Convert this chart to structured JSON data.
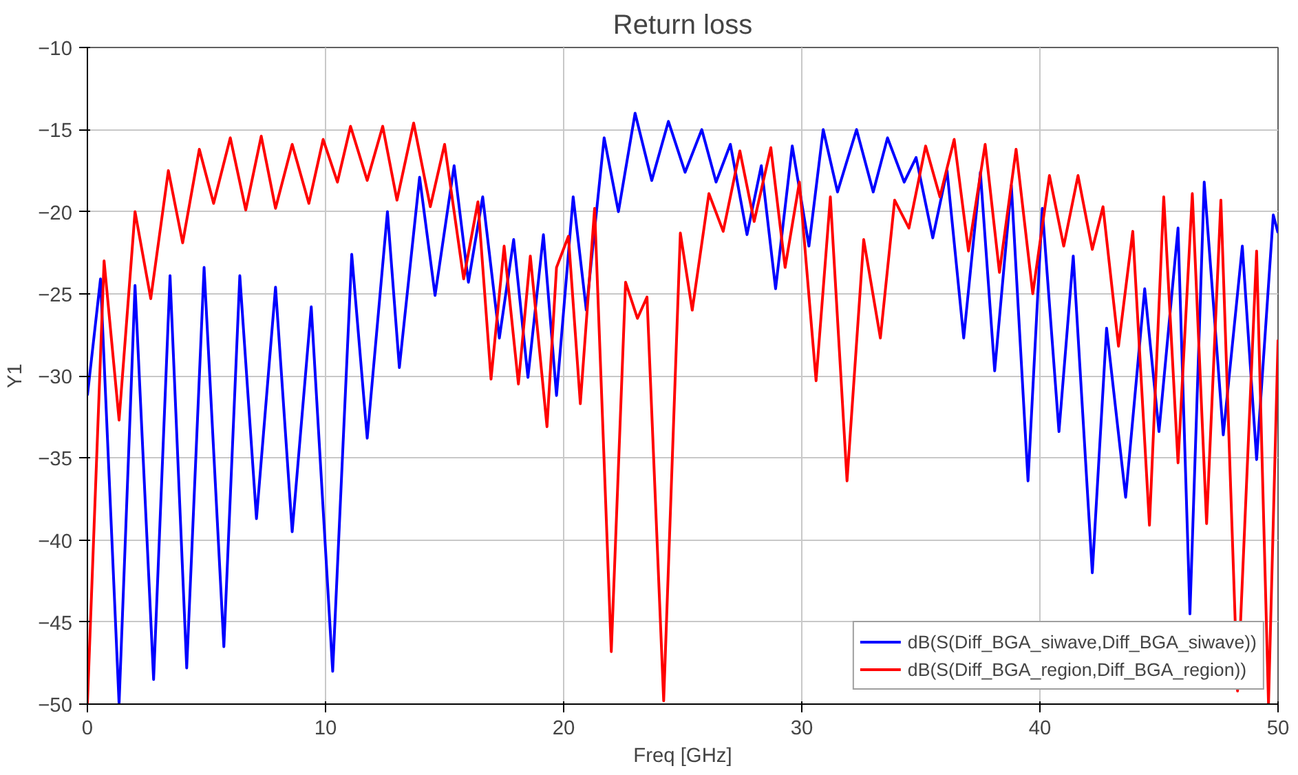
{
  "chart_data": {
    "type": "line",
    "title": "Return loss",
    "xlabel": "Freq [GHz]",
    "ylabel": "Y1",
    "xlim": [
      0,
      50
    ],
    "xticks": [
      0,
      10,
      20,
      30,
      40,
      50
    ],
    "ylim": [
      -50,
      -10
    ],
    "yticks": [
      -50,
      -45,
      -40,
      -35,
      -30,
      -25,
      -20,
      -15,
      -10
    ],
    "grid": true,
    "legend": "bottom right",
    "line_style": "solid",
    "marker": "none",
    "series": [
      {
        "name": "dB(S(Diff_BGA_siwave,Diff_BGA_siwave))",
        "color": "#0000ff",
        "x": [
          0,
          0.55,
          1.33,
          2.0,
          2.78,
          3.47,
          4.17,
          4.9,
          5.73,
          6.4,
          7.1,
          7.9,
          8.6,
          9.4,
          10.3,
          11.1,
          11.75,
          12.6,
          13.1,
          13.95,
          14.6,
          15.4,
          16.0,
          16.6,
          17.3,
          17.9,
          18.5,
          19.15,
          19.7,
          20.4,
          20.95,
          21.7,
          22.3,
          23.0,
          23.7,
          24.4,
          25.1,
          25.8,
          26.4,
          27.0,
          27.7,
          28.3,
          28.9,
          29.6,
          30.3,
          30.9,
          31.5,
          32.3,
          33.0,
          33.6,
          34.3,
          34.8,
          35.5,
          36.1,
          36.8,
          37.5,
          38.1,
          38.8,
          39.5,
          40.1,
          40.8,
          41.4,
          42.2,
          42.8,
          43.6,
          44.4,
          45.0,
          45.8,
          46.3,
          46.9,
          47.7,
          48.5,
          49.1,
          49.8,
          50
        ],
        "values": [
          -31.2,
          -24.1,
          -50,
          -24.5,
          -48.5,
          -23.9,
          -47.8,
          -23.4,
          -46.5,
          -23.9,
          -38.7,
          -24.6,
          -39.5,
          -25.8,
          -48,
          -22.6,
          -33.8,
          -20,
          -29.5,
          -17.9,
          -25.1,
          -17.2,
          -24.3,
          -19.1,
          -27.7,
          -21.7,
          -30.1,
          -21.4,
          -31.2,
          -19.1,
          -26,
          -15.5,
          -20,
          -14,
          -18.1,
          -14.5,
          -17.6,
          -15,
          -18.2,
          -15.9,
          -21.4,
          -17.2,
          -24.7,
          -16,
          -22.1,
          -15,
          -18.8,
          -15,
          -18.8,
          -15.5,
          -18.2,
          -16.7,
          -21.6,
          -17.5,
          -27.7,
          -17.6,
          -29.7,
          -18.4,
          -36.4,
          -19.8,
          -33.4,
          -22.7,
          -42,
          -27.1,
          -37.4,
          -24.7,
          -33.4,
          -21,
          -44.5,
          -18.2,
          -33.6,
          -22.1,
          -35.1,
          -20.2,
          -21.3
        ]
      },
      {
        "name": "dB(S(Diff_BGA_region,Diff_BGA_region))",
        "color": "#ff0000",
        "x": [
          0,
          0.7,
          1.33,
          2.0,
          2.66,
          3.4,
          4.0,
          4.7,
          5.3,
          6.0,
          6.65,
          7.3,
          7.9,
          8.6,
          9.3,
          9.9,
          10.5,
          11.05,
          11.75,
          12.4,
          13.0,
          13.7,
          14.4,
          15.0,
          15.8,
          16.4,
          16.95,
          17.5,
          18.1,
          18.6,
          19.3,
          19.7,
          20.2,
          20.7,
          21.3,
          22.0,
          22.6,
          23.1,
          23.5,
          24.2,
          24.9,
          25.4,
          26.1,
          26.7,
          27.4,
          28.0,
          28.7,
          29.3,
          29.9,
          30.6,
          31.2,
          31.9,
          32.6,
          33.3,
          33.9,
          34.5,
          35.2,
          35.8,
          36.4,
          37.0,
          37.7,
          38.3,
          39.0,
          39.7,
          40.4,
          41.0,
          41.6,
          42.2,
          42.65,
          43.3,
          43.9,
          44.6,
          45.2,
          45.8,
          46.4,
          47.0,
          47.6,
          48.3,
          49.1,
          49.6,
          50
        ],
        "values": [
          -50,
          -23,
          -32.7,
          -20,
          -25.3,
          -17.5,
          -21.9,
          -16.2,
          -19.5,
          -15.5,
          -19.9,
          -15.4,
          -19.8,
          -15.9,
          -19.5,
          -15.6,
          -18.2,
          -14.8,
          -18.1,
          -14.8,
          -19.3,
          -14.6,
          -19.7,
          -15.9,
          -24.1,
          -19.4,
          -30.2,
          -22.1,
          -30.5,
          -22.7,
          -33.1,
          -23.4,
          -21.5,
          -31.7,
          -19.8,
          -46.8,
          -24.3,
          -26.5,
          -25.2,
          -49.8,
          -21.3,
          -26,
          -18.9,
          -21.2,
          -16.3,
          -20.6,
          -16.1,
          -23.4,
          -18.2,
          -30.3,
          -19.1,
          -36.4,
          -21.7,
          -27.7,
          -19.3,
          -21,
          -16,
          -19.1,
          -15.6,
          -22.4,
          -15.9,
          -23.7,
          -16.2,
          -25,
          -17.8,
          -22.1,
          -17.8,
          -22.3,
          -19.7,
          -28.2,
          -21.2,
          -39.1,
          -19.1,
          -35.3,
          -18.9,
          -39,
          -19.3,
          -49.2,
          -22.4,
          -50,
          -27.8
        ]
      }
    ]
  }
}
